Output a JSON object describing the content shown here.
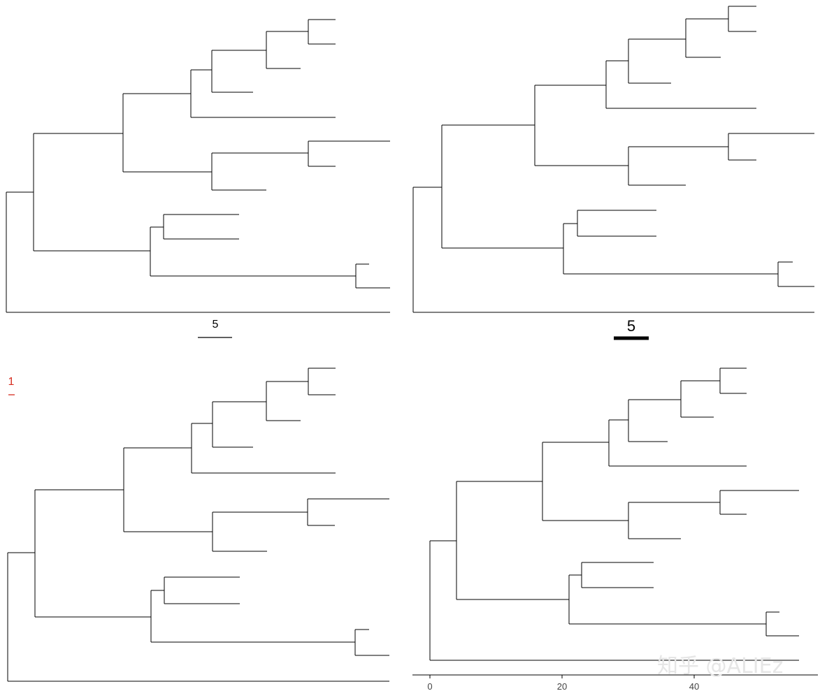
{
  "panels": [
    {
      "id": "top-left",
      "scale_bar": {
        "label": "5",
        "color": "#000000"
      }
    },
    {
      "id": "top-right",
      "scale_bar": {
        "label": "5",
        "color": "#000000"
      }
    },
    {
      "id": "bottom-left",
      "scale_bar": {
        "label": "1",
        "color": "#d62d20"
      }
    },
    {
      "id": "bottom-right",
      "axis": {
        "ticks": [
          "0",
          "20",
          "40"
        ]
      }
    }
  ],
  "watermark": "知乎 @ALIEz",
  "colors": {
    "branch": "#000000",
    "scale_red": "#d62d20",
    "axis_text": "#444444"
  }
}
